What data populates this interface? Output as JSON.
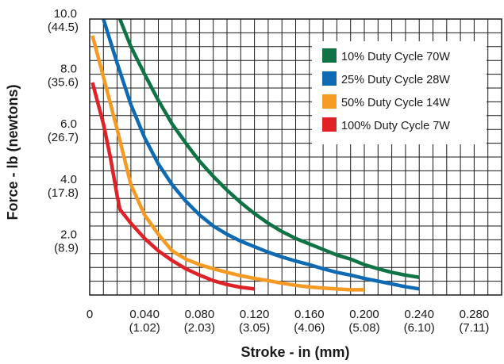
{
  "chart_data": {
    "type": "line",
    "title": "",
    "xlabel": "Stroke - in (mm)",
    "ylabel": "Force - lb (newtons)",
    "xlim": [
      0,
      0.3
    ],
    "ylim": [
      0,
      10.0
    ],
    "grid": true,
    "legend_position": "top-right",
    "x_ticks": [
      {
        "value": 0,
        "label": "0",
        "sub": ""
      },
      {
        "value": 0.04,
        "label": "0.040",
        "sub": "(1.02)"
      },
      {
        "value": 0.08,
        "label": "0.080",
        "sub": "(2.03)"
      },
      {
        "value": 0.12,
        "label": "0.120",
        "sub": "(3.05)"
      },
      {
        "value": 0.16,
        "label": "0.160",
        "sub": "(4.06)"
      },
      {
        "value": 0.2,
        "label": "0.200",
        "sub": "(5.08)"
      },
      {
        "value": 0.24,
        "label": "0.240",
        "sub": "(6.10)"
      },
      {
        "value": 0.28,
        "label": "0.280",
        "sub": "(7.11)"
      }
    ],
    "y_ticks": [
      {
        "value": 10.0,
        "label": "10.0",
        "sub": "(44.5)"
      },
      {
        "value": 8.0,
        "label": "8.0",
        "sub": "(35.6)"
      },
      {
        "value": 6.0,
        "label": "6.0",
        "sub": "(26.7)"
      },
      {
        "value": 4.0,
        "label": "4.0",
        "sub": "(17.8)"
      },
      {
        "value": 2.0,
        "label": "2.0",
        "sub": "(8.9)"
      }
    ],
    "series": [
      {
        "name": "10% Duty Cycle 70W",
        "color": "#0f7346",
        "points": [
          [
            0.022,
            10.0
          ],
          [
            0.03,
            9.0
          ],
          [
            0.04,
            8.0
          ],
          [
            0.05,
            7.05
          ],
          [
            0.06,
            6.2
          ],
          [
            0.07,
            5.5
          ],
          [
            0.08,
            4.85
          ],
          [
            0.09,
            4.3
          ],
          [
            0.1,
            3.8
          ],
          [
            0.11,
            3.35
          ],
          [
            0.12,
            2.95
          ],
          [
            0.13,
            2.6
          ],
          [
            0.14,
            2.3
          ],
          [
            0.15,
            2.05
          ],
          [
            0.16,
            1.85
          ],
          [
            0.17,
            1.65
          ],
          [
            0.18,
            1.45
          ],
          [
            0.19,
            1.3
          ],
          [
            0.2,
            1.1
          ],
          [
            0.21,
            0.95
          ],
          [
            0.22,
            0.82
          ],
          [
            0.23,
            0.72
          ],
          [
            0.24,
            0.64
          ]
        ]
      },
      {
        "name": "25% Duty Cycle 28W",
        "color": "#0e6ab3",
        "points": [
          [
            0.01,
            10.0
          ],
          [
            0.015,
            9.2
          ],
          [
            0.02,
            8.4
          ],
          [
            0.03,
            6.9
          ],
          [
            0.04,
            5.7
          ],
          [
            0.05,
            4.75
          ],
          [
            0.06,
            4.0
          ],
          [
            0.07,
            3.4
          ],
          [
            0.08,
            2.9
          ],
          [
            0.09,
            2.5
          ],
          [
            0.1,
            2.2
          ],
          [
            0.11,
            1.95
          ],
          [
            0.12,
            1.75
          ],
          [
            0.13,
            1.55
          ],
          [
            0.14,
            1.38
          ],
          [
            0.15,
            1.23
          ],
          [
            0.16,
            1.1
          ],
          [
            0.17,
            0.95
          ],
          [
            0.18,
            0.82
          ],
          [
            0.19,
            0.72
          ],
          [
            0.2,
            0.6
          ],
          [
            0.21,
            0.5
          ],
          [
            0.22,
            0.4
          ],
          [
            0.23,
            0.3
          ],
          [
            0.24,
            0.22
          ]
        ]
      },
      {
        "name": "50% Duty Cycle 14W",
        "color": "#f59a23",
        "points": [
          [
            0.002,
            9.4
          ],
          [
            0.01,
            7.9
          ],
          [
            0.02,
            6.0
          ],
          [
            0.03,
            4.0
          ],
          [
            0.04,
            2.9
          ],
          [
            0.05,
            2.2
          ],
          [
            0.06,
            1.6
          ],
          [
            0.07,
            1.3
          ],
          [
            0.08,
            1.1
          ],
          [
            0.09,
            0.95
          ],
          [
            0.1,
            0.82
          ],
          [
            0.11,
            0.7
          ],
          [
            0.12,
            0.6
          ],
          [
            0.13,
            0.52
          ],
          [
            0.14,
            0.43
          ],
          [
            0.15,
            0.35
          ],
          [
            0.16,
            0.29
          ],
          [
            0.17,
            0.25
          ],
          [
            0.18,
            0.22
          ],
          [
            0.19,
            0.19
          ],
          [
            0.2,
            0.19
          ]
        ]
      },
      {
        "name": "100% Duty Cycle 7W",
        "color": "#e02128",
        "points": [
          [
            0.002,
            7.7
          ],
          [
            0.01,
            6.2
          ],
          [
            0.015,
            5.0
          ],
          [
            0.02,
            3.6
          ],
          [
            0.022,
            3.1
          ],
          [
            0.03,
            2.6
          ],
          [
            0.04,
            2.05
          ],
          [
            0.05,
            1.6
          ],
          [
            0.06,
            1.25
          ],
          [
            0.07,
            0.95
          ],
          [
            0.08,
            0.72
          ],
          [
            0.09,
            0.52
          ],
          [
            0.1,
            0.38
          ],
          [
            0.11,
            0.28
          ],
          [
            0.12,
            0.22
          ]
        ]
      }
    ]
  }
}
